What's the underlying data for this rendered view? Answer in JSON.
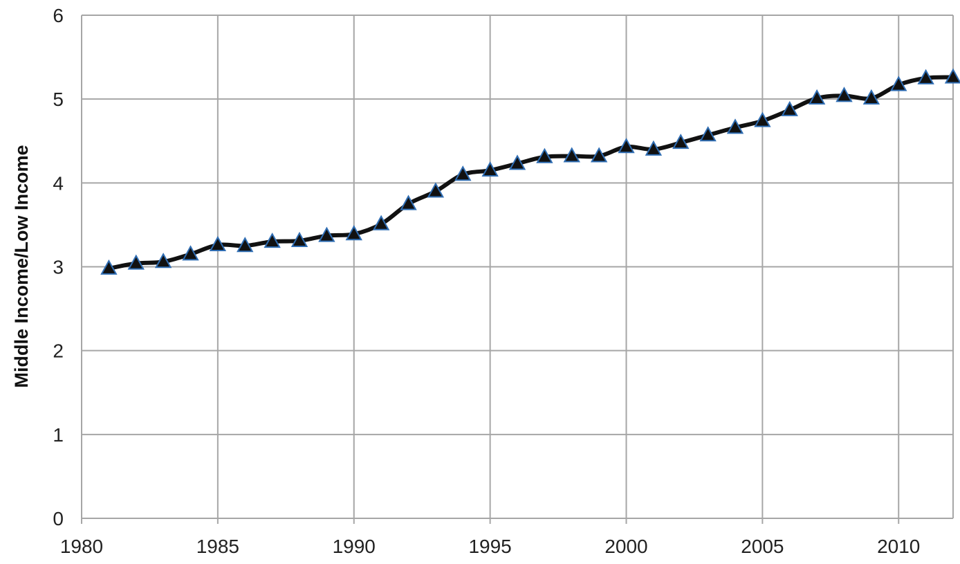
{
  "chart_data": {
    "type": "line",
    "title": "",
    "xlabel": "",
    "ylabel": "Middle Income/Low Income",
    "xlim": [
      1980,
      2012
    ],
    "ylim": [
      0,
      6
    ],
    "x_ticks": [
      "1980",
      "1985",
      "1990",
      "1995",
      "2000",
      "2005",
      "2010"
    ],
    "y_ticks": [
      "0",
      "1",
      "2",
      "3",
      "4",
      "5",
      "6"
    ],
    "grid": true,
    "legend": "none",
    "marker": "triangle",
    "colors": {
      "line": "#111111",
      "marker_fill": "#111111",
      "marker_edge": "#2f6db3",
      "grid": "#a6a6a6"
    },
    "series": [
      {
        "x": [
          1981,
          1982,
          1983,
          1984,
          1985,
          1986,
          1987,
          1988,
          1989,
          1990,
          1991,
          1992,
          1993,
          1994,
          1995,
          1996,
          1997,
          1998,
          1999,
          2000,
          2001,
          2002,
          2003,
          2004,
          2005,
          2006,
          2007,
          2008,
          2009,
          2010,
          2011,
          2012
        ],
        "values": [
          2.98,
          3.04,
          3.06,
          3.15,
          3.26,
          3.25,
          3.3,
          3.31,
          3.37,
          3.39,
          3.51,
          3.75,
          3.9,
          4.1,
          4.15,
          4.23,
          4.31,
          4.32,
          4.32,
          4.43,
          4.4,
          4.48,
          4.57,
          4.66,
          4.74,
          4.87,
          5.01,
          5.04,
          5.01,
          5.17,
          5.25,
          5.26
        ]
      }
    ]
  }
}
